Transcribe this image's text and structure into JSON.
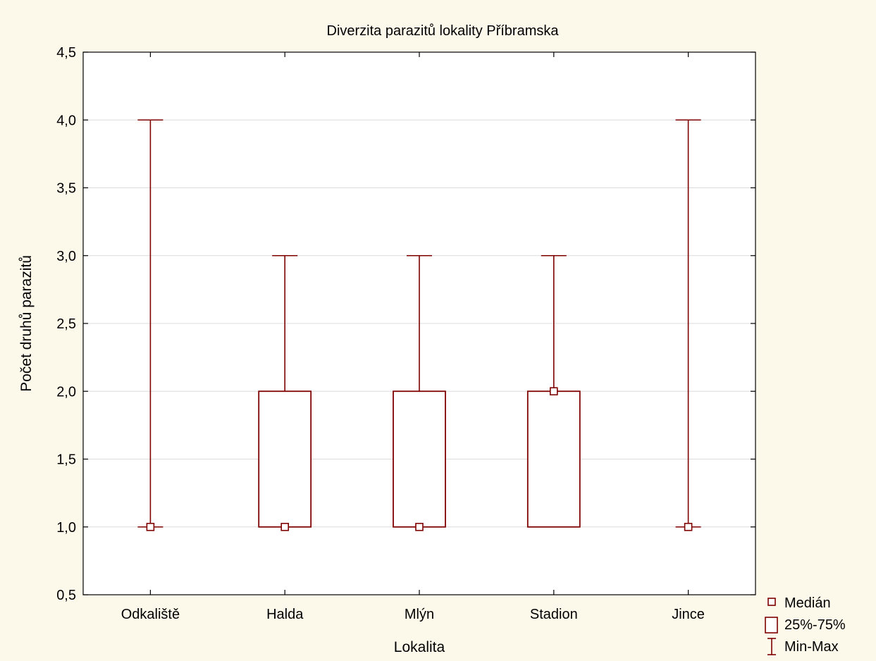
{
  "chart_data": {
    "type": "boxplot",
    "title": "Diverzita parazitů lokality Příbramska",
    "xlabel": "Lokalita",
    "ylabel": "Počet druhů parazitů",
    "ylim": [
      0.5,
      4.5
    ],
    "yticks": [
      "0,5",
      "1,0",
      "1,5",
      "2,0",
      "2,5",
      "3,0",
      "3,5",
      "4,0",
      "4,5"
    ],
    "ytick_values": [
      0.5,
      1.0,
      1.5,
      2.0,
      2.5,
      3.0,
      3.5,
      4.0,
      4.5
    ],
    "grid": true,
    "legend_position": "bottom-right",
    "categories": [
      "Odkaliště",
      "Halda",
      "Mlýn",
      "Stadion",
      "Jince"
    ],
    "median": [
      1,
      1,
      1,
      2,
      1
    ],
    "q1": [
      1,
      1,
      1,
      1,
      1
    ],
    "q3": [
      1,
      2,
      2,
      2,
      1
    ],
    "min": [
      1,
      1,
      1,
      1,
      1
    ],
    "max": [
      4,
      3,
      3,
      3,
      4
    ],
    "legend": {
      "median": "Medián",
      "box": "25%-75%",
      "whisker": "Min-Max"
    },
    "colors": {
      "series": "#7f0000",
      "background": "#fdf9ea",
      "plot_background": "#ffffff",
      "grid": "#dcdcdc"
    }
  }
}
